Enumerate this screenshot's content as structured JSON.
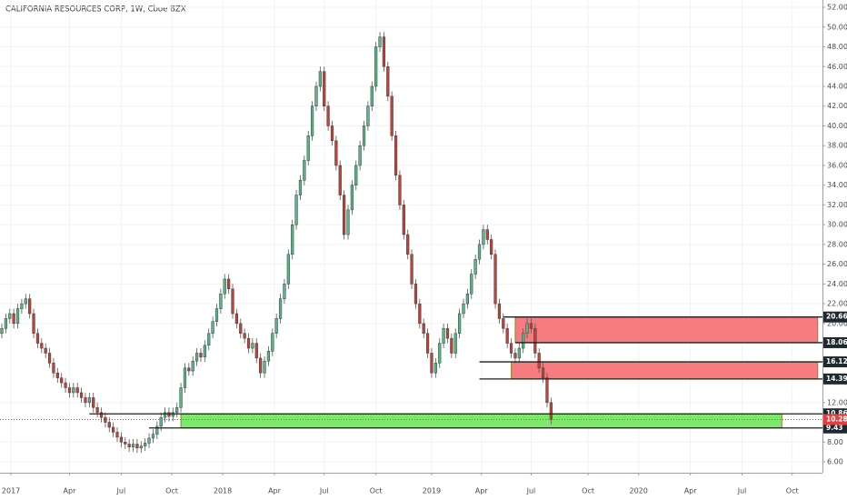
{
  "chart_data": {
    "type": "candlestick",
    "title": "CALIFORNIA RESOURCES CORP, 1W, Cboe BZX",
    "open": [
      19,
      19.5,
      20.5,
      21,
      20,
      21.5,
      22,
      22.5,
      21,
      19,
      18,
      17.5,
      17,
      16,
      15,
      14.5,
      14,
      13.5,
      13,
      13.5,
      13,
      12.5,
      12,
      12.5,
      11.5,
      11,
      10.5,
      10,
      9.5,
      9,
      8.5,
      8,
      7.8,
      7.5,
      7.8,
      7.4,
      7.6,
      7.9,
      8.4,
      8.8,
      9.6,
      10.5,
      11,
      10.6,
      11,
      11.5,
      13.5,
      15.5,
      15.2,
      16.2,
      17,
      16.6,
      17.8,
      19,
      20.2,
      21.5,
      23,
      24.5,
      23.5,
      21,
      20,
      19,
      18.5,
      17.5,
      18,
      16.5,
      15,
      16.2,
      17.2,
      19,
      20.5,
      22.5,
      24,
      27,
      30,
      33,
      34.5,
      36.5,
      39,
      42,
      44,
      45.5,
      42,
      40,
      38.5,
      36,
      33,
      29,
      31.5,
      34,
      36,
      38,
      40,
      42,
      44,
      48,
      49,
      46,
      43,
      39,
      35,
      32,
      29,
      27,
      24,
      22,
      20,
      19,
      17,
      15,
      16,
      18,
      19.5,
      18.5,
      17,
      19,
      21,
      22,
      23,
      25,
      26.5,
      28,
      29.5,
      28.5,
      27,
      22,
      20.5,
      19.5,
      18,
      17,
      16.5,
      17.5,
      19,
      20,
      19.5,
      17,
      15.5,
      14.5,
      12
    ],
    "high": [
      20,
      21,
      21.5,
      21.5,
      22,
      22.5,
      23,
      23,
      21.5,
      19.5,
      18.5,
      18,
      17.5,
      16.5,
      15.5,
      15,
      14.5,
      14,
      14,
      14,
      13.5,
      13,
      13,
      13,
      12,
      11.5,
      11,
      10.5,
      10,
      9.5,
      9,
      8.5,
      8.3,
      8.3,
      8.3,
      8.1,
      8.4,
      8.9,
      9.3,
      10.1,
      11,
      11.5,
      11.5,
      11.5,
      12,
      14,
      16,
      16,
      16.7,
      17.5,
      17.5,
      18.3,
      19.5,
      20.7,
      22,
      23.5,
      25,
      25,
      24,
      21.5,
      20.5,
      19.5,
      19,
      18.5,
      18.5,
      17,
      16.7,
      17.7,
      19.5,
      21,
      23,
      24.5,
      27.5,
      30.5,
      33.5,
      35,
      37,
      39.5,
      42.5,
      44.5,
      46,
      46,
      42.5,
      40.5,
      39,
      36.5,
      33.5,
      32,
      34.5,
      36.5,
      38.5,
      40.5,
      42.5,
      44.5,
      48.5,
      49.5,
      49.5,
      46.5,
      43.5,
      39.5,
      35.5,
      32.5,
      29.5,
      27.5,
      24.5,
      22.5,
      20.5,
      19.5,
      17.5,
      16.5,
      18.5,
      20,
      20,
      19,
      19.5,
      21.5,
      22.5,
      23.5,
      25.5,
      27,
      28.5,
      30,
      30,
      29,
      27.5,
      22.5,
      21,
      20,
      18.5,
      17.5,
      18,
      19.5,
      20.5,
      20.5,
      20,
      17.5,
      16,
      15,
      12.5
    ],
    "low": [
      18.5,
      19,
      20,
      19.5,
      19.5,
      21,
      21.5,
      20.5,
      18.5,
      17.5,
      17,
      16.5,
      15.5,
      14.5,
      14,
      13.5,
      13,
      12.5,
      12.5,
      12.5,
      12,
      11.5,
      11.5,
      11,
      10.5,
      10,
      9.5,
      9,
      8.5,
      8,
      7.5,
      7.3,
      7,
      7,
      6.9,
      6.9,
      7.1,
      7.4,
      7.9,
      8.3,
      9.1,
      10,
      10.1,
      10.1,
      10.5,
      11,
      13,
      14.7,
      14.7,
      15.7,
      16.1,
      16.1,
      17.3,
      18.5,
      19.7,
      21,
      22.5,
      23,
      20.5,
      19.5,
      18.5,
      18,
      17,
      17,
      16,
      14.5,
      14.5,
      15.7,
      16.7,
      18.5,
      20,
      22,
      23.5,
      26.5,
      29.5,
      32.5,
      34,
      36,
      38.5,
      41.5,
      43.5,
      41.5,
      39.5,
      38,
      35.5,
      32.5,
      28.5,
      28.5,
      31,
      33.5,
      35.5,
      37.5,
      39.5,
      41.5,
      43.5,
      47.5,
      45.5,
      42.5,
      38.5,
      34.5,
      31.5,
      28.5,
      26.5,
      23.5,
      21.5,
      19.5,
      18.5,
      16.5,
      14.5,
      14.5,
      15.5,
      17.5,
      18,
      16.5,
      16.5,
      18.5,
      20.5,
      21.5,
      22.5,
      24.5,
      26,
      27.5,
      28,
      26.5,
      21.5,
      20,
      19,
      17.5,
      16.5,
      16,
      16,
      17,
      18.5,
      19,
      16.5,
      15,
      14,
      11.5,
      9.8
    ],
    "close": [
      19.5,
      20.5,
      21,
      20,
      21.5,
      22,
      22.5,
      21,
      19,
      18,
      17.5,
      17,
      16,
      15,
      14.5,
      14,
      13.5,
      13,
      13.5,
      13,
      12.5,
      12,
      12.5,
      11.5,
      11,
      10.5,
      10,
      9.5,
      9,
      8.5,
      8,
      7.8,
      7.5,
      7.8,
      7.4,
      7.6,
      7.9,
      8.4,
      8.8,
      9.6,
      10.5,
      11,
      10.6,
      11,
      11.5,
      13.5,
      15.5,
      15.2,
      16.2,
      17,
      16.6,
      17.8,
      19,
      20.2,
      21.5,
      23,
      24.5,
      23.5,
      21,
      20,
      19,
      18.5,
      17.5,
      18,
      16.5,
      15,
      16.2,
      17.2,
      19,
      20.5,
      22.5,
      24,
      27,
      30,
      33,
      34.5,
      36.5,
      39,
      42,
      44,
      45.5,
      42,
      40,
      38.5,
      36,
      33,
      29,
      31.5,
      34,
      36,
      38,
      40,
      42,
      44,
      48,
      49,
      46,
      43,
      39,
      35,
      32,
      29,
      27,
      24,
      22,
      20,
      19,
      17,
      15,
      16,
      18,
      19.5,
      18.5,
      17,
      19,
      21,
      22,
      23,
      25,
      26.5,
      28,
      29.5,
      28.5,
      27,
      22,
      20.5,
      19.5,
      18,
      17,
      16.5,
      17.5,
      19,
      20,
      19.5,
      17,
      15.5,
      14.5,
      12,
      10.3
    ],
    "up_color": "#56b786",
    "down_color": "#c0433a",
    "xlim": [
      -0.46,
      206.2
    ],
    "xticks": [
      {
        "value": 2.3,
        "label": "2017"
      },
      {
        "value": 17,
        "label": "Apr"
      },
      {
        "value": 30,
        "label": "Jul"
      },
      {
        "value": 42.7,
        "label": "Oct"
      },
      {
        "value": 55.5,
        "label": "2018"
      },
      {
        "value": 68.5,
        "label": "Apr"
      },
      {
        "value": 81,
        "label": "Jul"
      },
      {
        "value": 94,
        "label": "Oct"
      },
      {
        "value": 108,
        "label": "2019"
      },
      {
        "value": 120.5,
        "label": "Apr"
      },
      {
        "value": 133,
        "label": "Jul"
      },
      {
        "value": 147.3,
        "label": "Oct"
      },
      {
        "value": 160,
        "label": "2020"
      },
      {
        "value": 173,
        "label": "Apr"
      },
      {
        "value": 186,
        "label": "Jul"
      },
      {
        "value": 198.6,
        "label": "Oct"
      }
    ],
    "ylim": [
      4.9,
      52.74
    ],
    "yticks": [
      {
        "value": 6,
        "label": "6.00"
      },
      {
        "value": 8,
        "label": "8.00"
      },
      {
        "value": 12,
        "label": "12.00"
      },
      {
        "value": 20,
        "label": "20.00"
      },
      {
        "value": 22,
        "label": "22.00"
      },
      {
        "value": 24,
        "label": "24.00"
      },
      {
        "value": 26,
        "label": "26.00"
      },
      {
        "value": 28,
        "label": "28.00"
      },
      {
        "value": 30,
        "label": "30.00"
      },
      {
        "value": 32,
        "label": "32.00"
      },
      {
        "value": 34,
        "label": "34.00"
      },
      {
        "value": 36,
        "label": "36.00"
      },
      {
        "value": 38,
        "label": "38.00"
      },
      {
        "value": 40,
        "label": "40.00"
      },
      {
        "value": 42,
        "label": "42.00"
      },
      {
        "value": 44,
        "label": "44.00"
      },
      {
        "value": 46,
        "label": "46.00"
      },
      {
        "value": 48,
        "label": "48.00"
      },
      {
        "value": 50,
        "label": "50.00"
      },
      {
        "value": 52,
        "label": "52.00"
      }
    ],
    "grid": true,
    "zones": [
      {
        "low": 18.06,
        "high": 20.66,
        "start": 129,
        "end": 205,
        "color": "#f77c80"
      },
      {
        "low": 14.39,
        "high": 16.12,
        "start": 128,
        "end": 205,
        "color": "#f77c80"
      },
      {
        "low": 9.43,
        "high": 10.86,
        "start": 45,
        "end": 196,
        "color": "#7ee86d"
      }
    ],
    "levels": [
      {
        "value": 20.66,
        "start": 126
      },
      {
        "value": 18.06,
        "start": 129
      },
      {
        "value": 16.12,
        "start": 120
      },
      {
        "value": 14.39,
        "start": 120
      },
      {
        "value": 10.86,
        "start": 22
      },
      {
        "value": 9.43,
        "start": 37
      }
    ],
    "last_price": 10.28,
    "last_color": "#e0403f"
  }
}
